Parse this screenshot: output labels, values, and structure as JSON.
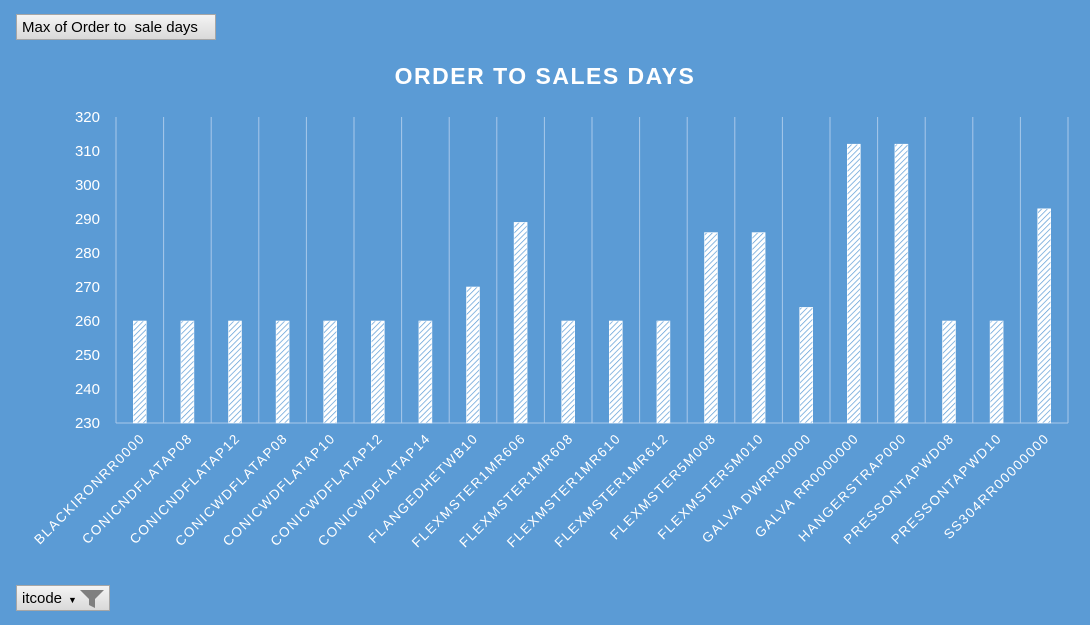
{
  "pivot": {
    "value_field": "Max of Order to  sale days",
    "axis_field": "itcode"
  },
  "colors": {
    "background": "#5b9bd5",
    "bar_fill": "#ffffff",
    "bar_hatch": "#5b9bd5",
    "text": "#ffffff",
    "gridline": "#a9c8ea"
  },
  "chart_data": {
    "type": "bar",
    "title": "ORDER TO SALES DAYS",
    "xlabel": "",
    "ylabel": "",
    "ylim": [
      230,
      320
    ],
    "yticks": [
      230,
      240,
      250,
      260,
      270,
      280,
      290,
      300,
      310,
      320
    ],
    "grid": "vertical",
    "legend": "none",
    "categories": [
      "BLACKIRONRR0000",
      "CONICNDFLATAP08",
      "CONICNDFLATAP12",
      "CONICWDFLATAP08",
      "CONICWDFLATAP10",
      "CONICWDFLATAP12",
      "CONICWDFLATAP14",
      "FLANGEDHETWB10",
      "FLEXMSTER1MR606",
      "FLEXMSTER1MR608",
      "FLEXMSTER1MR610",
      "FLEXMSTER1MR612",
      "FLEXMSTER5M008",
      "FLEXMSTER5M010",
      "GALVA DWRR00000",
      "GALVA RR0000000",
      "HANGERSTRAP000",
      "PRESSONTAPWD08",
      "PRESSONTAPWD10",
      "SS304RR00000000"
    ],
    "values": [
      260,
      260,
      260,
      260,
      260,
      260,
      260,
      270,
      289,
      260,
      260,
      260,
      286,
      286,
      264,
      312,
      312,
      260,
      260,
      293
    ]
  }
}
